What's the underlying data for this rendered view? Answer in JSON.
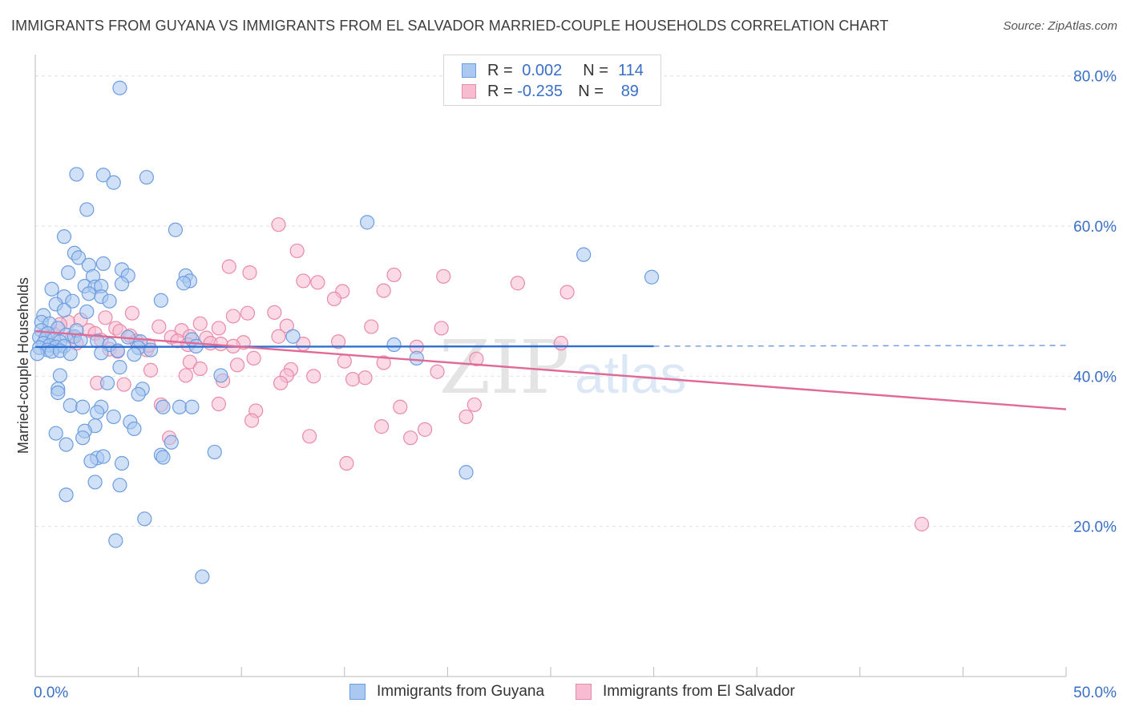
{
  "title": "IMMIGRANTS FROM GUYANA VS IMMIGRANTS FROM EL SALVADOR MARRIED-COUPLE HOUSEHOLDS CORRELATION CHART",
  "source": "Source: ZipAtlas.com",
  "watermark": {
    "zip": "ZIP",
    "atlas": "atlas"
  },
  "legend": {
    "rows": [
      {
        "r_label": "R =",
        "r_value": "0.002",
        "n_label": "N =",
        "n_value": "114"
      },
      {
        "r_label": "R =",
        "r_value": "-0.235",
        "n_label": "N =",
        "n_value": "89"
      }
    ]
  },
  "bottom_legend": [
    "Immigrants from Guyana",
    "Immigrants from El Salvador"
  ],
  "colors": {
    "guyana_fill": "#aac8f0",
    "guyana_stroke": "#6d9de0",
    "guyana_line": "#2f6fd0",
    "elsalvador_fill": "#f7bccf",
    "elsalvador_stroke": "#e98aaa",
    "elsalvador_line": "#e06a95",
    "tick_label": "#3a6fc7",
    "grid": "#e3e3e3"
  },
  "chart_data": {
    "type": "scatter",
    "ylabel": "Married-couple Households",
    "xlabel": "",
    "xlim": [
      0,
      50
    ],
    "ylim": [
      0,
      82
    ],
    "x_tick_labels": [
      {
        "value": 0,
        "label": "0.0%"
      },
      {
        "value": 50,
        "label": "50.0%"
      }
    ],
    "y_tick_labels": [
      {
        "value": 20,
        "label": "20.0%"
      },
      {
        "value": 40,
        "label": "40.0%"
      },
      {
        "value": 60,
        "label": "60.0%"
      },
      {
        "value": 80,
        "label": "80.0%"
      }
    ],
    "grid": true,
    "legend_position": "top-center",
    "series": [
      {
        "name": "Immigrants from Guyana",
        "r": 0.002,
        "n": 114,
        "trend": {
          "x": [
            0,
            30
          ],
          "y": [
            43.9,
            44.0
          ],
          "dashed_to": [
            50,
            44.1
          ]
        },
        "points": [
          [
            4.1,
            78.4
          ],
          [
            2.0,
            66.9
          ],
          [
            3.3,
            66.8
          ],
          [
            3.8,
            65.8
          ],
          [
            5.4,
            66.5
          ],
          [
            2.5,
            62.2
          ],
          [
            6.8,
            59.5
          ],
          [
            16.1,
            60.5
          ],
          [
            1.4,
            58.6
          ],
          [
            1.9,
            56.4
          ],
          [
            2.1,
            55.8
          ],
          [
            2.6,
            54.8
          ],
          [
            3.3,
            55.0
          ],
          [
            4.2,
            54.2
          ],
          [
            4.5,
            53.4
          ],
          [
            1.6,
            53.8
          ],
          [
            2.8,
            53.3
          ],
          [
            7.3,
            53.4
          ],
          [
            7.5,
            52.7
          ],
          [
            4.2,
            52.3
          ],
          [
            2.4,
            52.0
          ],
          [
            2.9,
            51.9
          ],
          [
            3.2,
            52.0
          ],
          [
            0.8,
            51.6
          ],
          [
            7.2,
            52.4
          ],
          [
            1.4,
            50.6
          ],
          [
            2.6,
            51.0
          ],
          [
            3.2,
            50.6
          ],
          [
            1.0,
            49.6
          ],
          [
            1.8,
            50.0
          ],
          [
            3.6,
            50.0
          ],
          [
            6.1,
            50.1
          ],
          [
            1.4,
            48.8
          ],
          [
            2.5,
            48.6
          ],
          [
            0.4,
            48.1
          ],
          [
            0.3,
            47.2
          ],
          [
            0.7,
            47.0
          ],
          [
            1.1,
            46.4
          ],
          [
            0.3,
            46.1
          ],
          [
            0.6,
            45.7
          ],
          [
            1.5,
            45.5
          ],
          [
            1.9,
            45.3
          ],
          [
            2.0,
            46.1
          ],
          [
            0.2,
            45.2
          ],
          [
            0.5,
            45.0
          ],
          [
            0.9,
            44.9
          ],
          [
            1.2,
            44.6
          ],
          [
            0.4,
            44.4
          ],
          [
            0.7,
            44.1
          ],
          [
            1.0,
            43.9
          ],
          [
            1.4,
            44.0
          ],
          [
            0.2,
            43.8
          ],
          [
            0.6,
            43.5
          ],
          [
            0.8,
            43.3
          ],
          [
            1.2,
            43.4
          ],
          [
            1.7,
            43.0
          ],
          [
            0.1,
            43.0
          ],
          [
            2.2,
            44.8
          ],
          [
            3.0,
            44.7
          ],
          [
            4.5,
            45.2
          ],
          [
            5.1,
            44.6
          ],
          [
            5.0,
            43.8
          ],
          [
            7.6,
            44.9
          ],
          [
            17.4,
            44.2
          ],
          [
            12.5,
            45.3
          ],
          [
            7.8,
            44.0
          ],
          [
            3.6,
            44.2
          ],
          [
            4.0,
            43.4
          ],
          [
            5.6,
            43.5
          ],
          [
            3.2,
            43.1
          ],
          [
            4.8,
            42.9
          ],
          [
            4.1,
            41.2
          ],
          [
            9.0,
            40.1
          ],
          [
            1.2,
            40.1
          ],
          [
            3.5,
            39.1
          ],
          [
            1.1,
            38.3
          ],
          [
            5.2,
            38.3
          ],
          [
            1.1,
            37.8
          ],
          [
            5.0,
            37.6
          ],
          [
            1.7,
            36.1
          ],
          [
            2.3,
            35.9
          ],
          [
            3.2,
            35.9
          ],
          [
            6.2,
            35.9
          ],
          [
            7.0,
            35.9
          ],
          [
            7.6,
            35.9
          ],
          [
            3.0,
            35.2
          ],
          [
            3.8,
            34.6
          ],
          [
            4.6,
            33.9
          ],
          [
            4.8,
            33.0
          ],
          [
            2.9,
            33.4
          ],
          [
            2.4,
            32.7
          ],
          [
            1.0,
            32.4
          ],
          [
            2.3,
            31.8
          ],
          [
            6.6,
            31.2
          ],
          [
            1.5,
            30.9
          ],
          [
            8.7,
            29.9
          ],
          [
            3.0,
            29.1
          ],
          [
            3.3,
            29.3
          ],
          [
            6.1,
            29.5
          ],
          [
            6.2,
            29.2
          ],
          [
            2.7,
            28.7
          ],
          [
            4.2,
            28.4
          ],
          [
            20.9,
            27.2
          ],
          [
            2.9,
            25.9
          ],
          [
            4.1,
            25.5
          ],
          [
            1.5,
            24.2
          ],
          [
            5.3,
            21.0
          ],
          [
            3.9,
            18.1
          ],
          [
            8.1,
            13.3
          ],
          [
            26.6,
            56.2
          ],
          [
            29.9,
            53.2
          ],
          [
            18.5,
            42.4
          ]
        ]
      },
      {
        "name": "Immigrants from El Salvador",
        "r": -0.235,
        "n": 89,
        "trend": {
          "x": [
            0,
            50
          ],
          "y": [
            46.0,
            35.6
          ]
        },
        "points": [
          [
            11.8,
            60.2
          ],
          [
            12.7,
            56.7
          ],
          [
            9.4,
            54.6
          ],
          [
            10.4,
            53.8
          ],
          [
            17.4,
            53.5
          ],
          [
            19.8,
            53.3
          ],
          [
            13.0,
            52.7
          ],
          [
            13.7,
            52.5
          ],
          [
            23.4,
            52.4
          ],
          [
            14.9,
            51.3
          ],
          [
            16.9,
            51.4
          ],
          [
            25.8,
            51.2
          ],
          [
            14.5,
            50.3
          ],
          [
            4.7,
            48.4
          ],
          [
            9.6,
            48.0
          ],
          [
            10.3,
            48.4
          ],
          [
            11.6,
            48.5
          ],
          [
            1.6,
            47.2
          ],
          [
            2.2,
            47.5
          ],
          [
            3.4,
            47.8
          ],
          [
            1.2,
            46.9
          ],
          [
            2.6,
            46.1
          ],
          [
            3.9,
            46.4
          ],
          [
            4.1,
            46.0
          ],
          [
            6.0,
            46.6
          ],
          [
            7.1,
            46.1
          ],
          [
            8.0,
            47.0
          ],
          [
            8.9,
            46.4
          ],
          [
            12.2,
            46.7
          ],
          [
            16.3,
            46.6
          ],
          [
            19.7,
            46.4
          ],
          [
            0.9,
            45.6
          ],
          [
            1.8,
            45.2
          ],
          [
            2.9,
            45.7
          ],
          [
            4.6,
            45.4
          ],
          [
            6.6,
            45.2
          ],
          [
            7.5,
            45.3
          ],
          [
            8.3,
            45.1
          ],
          [
            11.8,
            45.3
          ],
          [
            3.2,
            44.8
          ],
          [
            4.9,
            44.7
          ],
          [
            6.9,
            44.7
          ],
          [
            8.5,
            44.4
          ],
          [
            9.0,
            44.3
          ],
          [
            10.1,
            44.5
          ],
          [
            13.0,
            44.3
          ],
          [
            14.7,
            44.6
          ],
          [
            18.5,
            43.9
          ],
          [
            25.5,
            44.4
          ],
          [
            2.0,
            44.4
          ],
          [
            3.6,
            43.6
          ],
          [
            4.0,
            43.3
          ],
          [
            5.4,
            43.5
          ],
          [
            5.5,
            44.1
          ],
          [
            7.4,
            44.2
          ],
          [
            9.6,
            44.0
          ],
          [
            10.6,
            42.4
          ],
          [
            15.0,
            42.0
          ],
          [
            16.9,
            41.8
          ],
          [
            7.5,
            41.9
          ],
          [
            9.8,
            41.5
          ],
          [
            8.0,
            41.0
          ],
          [
            12.4,
            40.9
          ],
          [
            5.6,
            40.8
          ],
          [
            12.2,
            40.1
          ],
          [
            7.3,
            40.1
          ],
          [
            13.5,
            40.0
          ],
          [
            15.4,
            39.6
          ],
          [
            9.1,
            39.4
          ],
          [
            3.0,
            39.1
          ],
          [
            4.3,
            38.9
          ],
          [
            11.9,
            39.1
          ],
          [
            19.5,
            40.6
          ],
          [
            21.4,
            42.3
          ],
          [
            16.0,
            39.8
          ],
          [
            8.9,
            36.3
          ],
          [
            6.1,
            36.2
          ],
          [
            10.7,
            35.4
          ],
          [
            17.7,
            35.9
          ],
          [
            21.3,
            36.2
          ],
          [
            10.5,
            34.1
          ],
          [
            20.9,
            34.6
          ],
          [
            16.8,
            33.3
          ],
          [
            18.9,
            32.9
          ],
          [
            13.3,
            32.0
          ],
          [
            18.2,
            31.8
          ],
          [
            6.5,
            31.8
          ],
          [
            15.1,
            28.4
          ],
          [
            43.0,
            20.3
          ]
        ]
      }
    ]
  }
}
